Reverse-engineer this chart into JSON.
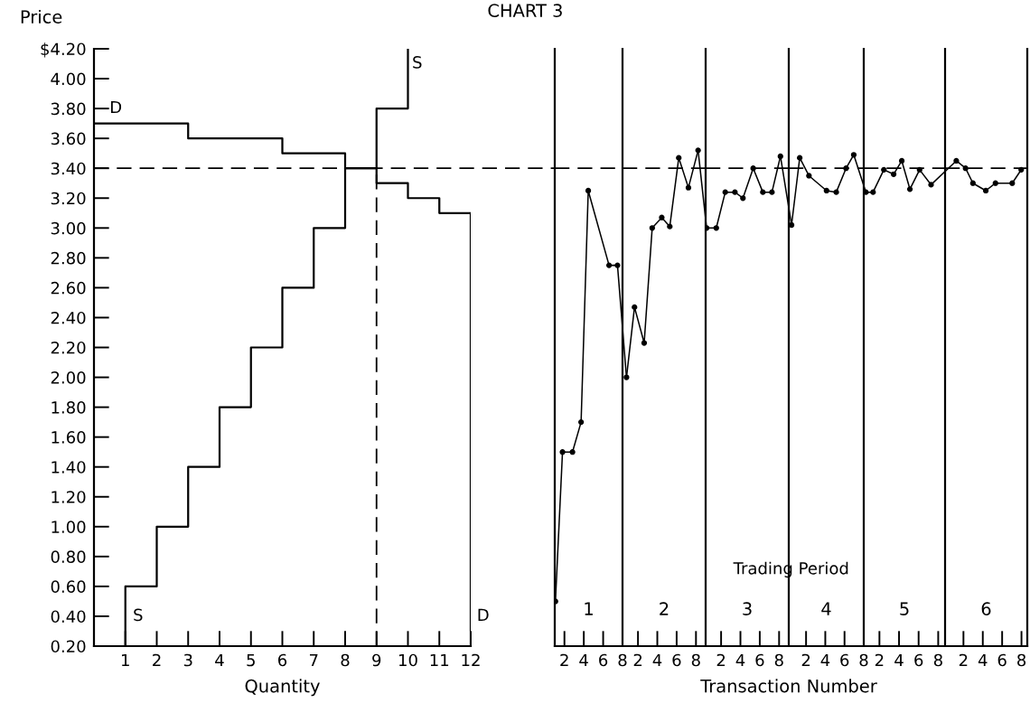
{
  "chart_data": [
    {
      "type": "step",
      "title": "CHART 3",
      "xlabel": "Quantity",
      "ylabel": "Price",
      "series": [
        {
          "color": "#000000",
          "x": [
            1,
            1,
            2,
            3,
            4,
            5,
            6,
            7,
            8,
            9,
            10,
            10
          ],
          "values": [
            0.2,
            0.6,
            1.0,
            1.4,
            1.8,
            2.2,
            2.6,
            3.0,
            3.4,
            3.8,
            4.2,
            4.2
          ]
        },
        {
          "color": "#000000",
          "x": [
            0,
            3,
            6,
            8,
            9,
            10,
            11,
            12
          ],
          "values": [
            3.7,
            3.6,
            3.5,
            3.4,
            3.3,
            3.2,
            3.1,
            0.2
          ]
        }
      ],
      "xlim": [
        0,
        12
      ],
      "ylim": [
        0.2,
        4.2
      ],
      "xticks": [
        1,
        2,
        3,
        4,
        5,
        6,
        7,
        8,
        9,
        10,
        11,
        12
      ],
      "yticks": [
        {
          "value": 0.2,
          "label": "0.20"
        },
        {
          "value": 0.4,
          "label": "0.40"
        },
        {
          "value": 0.6,
          "label": "0.60"
        },
        {
          "value": 0.8,
          "label": "0.80"
        },
        {
          "value": 1.0,
          "label": "1.00"
        },
        {
          "value": 1.2,
          "label": "1.20"
        },
        {
          "value": 1.4,
          "label": "1.40"
        },
        {
          "value": 1.6,
          "label": "1.60"
        },
        {
          "value": 1.8,
          "label": "1.80"
        },
        {
          "value": 2.0,
          "label": "2.00"
        },
        {
          "value": 2.2,
          "label": "2.20"
        },
        {
          "value": 2.4,
          "label": "2.40"
        },
        {
          "value": 2.6,
          "label": "2.60"
        },
        {
          "value": 2.8,
          "label": "2.80"
        },
        {
          "value": 3.0,
          "label": "3.00"
        },
        {
          "value": 3.2,
          "label": "3.20"
        },
        {
          "value": 3.4,
          "label": "3.40"
        },
        {
          "value": 3.6,
          "label": "3.60"
        },
        {
          "value": 3.8,
          "label": "3.80"
        },
        {
          "value": 4.0,
          "label": "4.00"
        },
        {
          "value": 4.2,
          "label": "$4.20"
        }
      ],
      "ref_lines": [
        {
          "axis": "y",
          "value": 3.4,
          "line_style": "dashed"
        },
        {
          "axis": "x",
          "value": 9,
          "line_style": "dashed"
        }
      ],
      "annotations": [
        "S",
        "D",
        "D",
        "S"
      ],
      "grid": false
    },
    {
      "type": "line",
      "title": "1",
      "marker": "circle",
      "line_style": "solid",
      "series": [
        {
          "color": "#000000",
          "x": [
            1.07,
            1.8,
            2.83,
            3.72,
            4.46,
            6.61,
            7.48
          ],
          "values": [
            0.5,
            1.5,
            1.5,
            1.7,
            3.25,
            2.75,
            2.75
          ]
        }
      ],
      "xlim": [
        1,
        8
      ],
      "ylim": [
        0.2,
        4.2
      ],
      "xticks": [
        2,
        4,
        6,
        8
      ],
      "tick_labels": "x",
      "ref_lines": [
        {
          "axis": "y",
          "value": 3.4,
          "line_style": "dashed"
        }
      ],
      "grid": false
    },
    {
      "type": "line",
      "title": "2",
      "marker": "circle",
      "line_style": "solid",
      "series": [
        {
          "color": "#000000",
          "x": [
            0.81,
            1.64,
            2.64,
            3.47,
            4.46,
            5.29,
            6.22,
            7.22,
            8.22
          ],
          "values": [
            2.0,
            2.47,
            2.23,
            3.0,
            3.07,
            3.01,
            3.47,
            3.27,
            3.52
          ]
        }
      ],
      "xlim": [
        0.4,
        9.0
      ],
      "ylim": [
        0.2,
        4.2
      ],
      "xticks": [
        2,
        4,
        6,
        8
      ],
      "tick_labels": "x",
      "ref_lines": [
        {
          "axis": "y",
          "value": 3.4,
          "line_style": "dashed"
        }
      ],
      "grid": false
    },
    {
      "type": "line",
      "title": "3",
      "marker": "circle",
      "line_style": "solid",
      "series": [
        {
          "color": "#000000",
          "x": [
            0.5,
            1.5,
            2.43,
            3.43,
            4.26,
            5.32,
            6.32,
            7.26,
            8.14
          ],
          "values": [
            3.0,
            3.0,
            3.24,
            3.24,
            3.2,
            3.4,
            3.24,
            3.24,
            3.48
          ]
        }
      ],
      "xlim": [
        0.4,
        9.0
      ],
      "ylim": [
        0.2,
        4.2
      ],
      "xticks": [
        2,
        4,
        6,
        8
      ],
      "tick_labels": "x",
      "ref_lines": [
        {
          "axis": "y",
          "value": 3.4,
          "line_style": "dashed"
        }
      ],
      "annotations": [
        "Trading Period"
      ],
      "xlabel": "Transaction Number",
      "grid": false
    },
    {
      "type": "line",
      "title": "4",
      "marker": "circle",
      "line_style": "solid",
      "series": [
        {
          "color": "#000000",
          "x": [
            0.49,
            1.34,
            2.3,
            4.13,
            5.14,
            6.16,
            6.96
          ],
          "values": [
            3.02,
            3.47,
            3.35,
            3.25,
            3.24,
            3.4,
            3.49
          ]
        }
      ],
      "xlim": [
        0.2,
        8.0
      ],
      "ylim": [
        0.2,
        4.2
      ],
      "xticks": [
        2,
        4,
        6,
        8
      ],
      "tick_labels": "x",
      "ref_lines": [
        {
          "axis": "y",
          "value": 3.4,
          "line_style": "dashed"
        }
      ],
      "grid": false
    },
    {
      "type": "line",
      "title": "5",
      "marker": "circle",
      "line_style": "solid",
      "series": [
        {
          "color": "#000000",
          "x": [
            0.62,
            1.35,
            2.45,
            3.45,
            4.28,
            5.11,
            6.1,
            7.27
          ],
          "values": [
            3.24,
            3.24,
            3.39,
            3.36,
            3.45,
            3.26,
            3.39,
            3.29
          ]
        }
      ],
      "xlim": [
        0.4,
        8.7
      ],
      "ylim": [
        0.2,
        4.2
      ],
      "xticks": [
        2,
        4,
        6,
        8
      ],
      "tick_labels": "x",
      "ref_lines": [
        {
          "axis": "y",
          "value": 3.4,
          "line_style": "dashed"
        }
      ],
      "grid": false
    },
    {
      "type": "line",
      "title": "6",
      "marker": "circle",
      "line_style": "solid",
      "series": [
        {
          "color": "#000000",
          "x": [
            1.26,
            2.22,
            2.98,
            4.31,
            5.31,
            7.04,
            7.97
          ],
          "values": [
            3.45,
            3.4,
            3.3,
            3.25,
            3.3,
            3.3,
            3.39
          ]
        }
      ],
      "xlim": [
        0.1,
        8.6
      ],
      "ylim": [
        0.2,
        4.2
      ],
      "xticks": [
        2,
        4,
        6,
        8
      ],
      "tick_labels": "x",
      "ref_lines": [
        {
          "axis": "y",
          "value": 3.4,
          "line_style": "dashed"
        }
      ],
      "grid": false
    }
  ]
}
